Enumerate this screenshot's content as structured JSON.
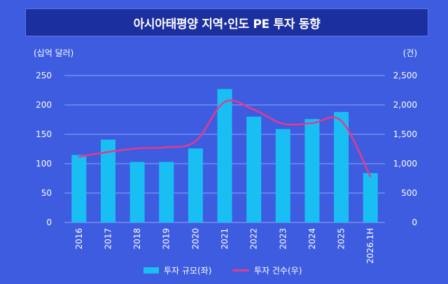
{
  "title": "아시아태평양 지역·인도 PE 투자 동향",
  "chart_data": {
    "type": "bar",
    "categories": [
      "2016",
      "2017",
      "2018",
      "2019",
      "2020",
      "2021",
      "2022",
      "2023",
      "2024",
      "2025",
      "2026.1H"
    ],
    "series": [
      {
        "name": "투자 규모(좌)",
        "type": "bar",
        "axis": "left",
        "values": [
          115,
          141,
          103,
          103,
          126,
          227,
          180,
          159,
          176,
          188,
          84
        ]
      },
      {
        "name": "투자 건수(우)",
        "type": "line",
        "axis": "right",
        "values": [
          1120,
          1200,
          1260,
          1280,
          1380,
          2050,
          1920,
          1680,
          1690,
          1730,
          780
        ]
      }
    ],
    "left_axis": {
      "unit_label": "(십억 달러)",
      "ylim": [
        0,
        250
      ],
      "ticks": [
        "0",
        "50",
        "100",
        "150",
        "200",
        "250"
      ]
    },
    "right_axis": {
      "unit_label": "(건)",
      "ylim": [
        0,
        2500
      ],
      "ticks": [
        "0",
        "500",
        "1,000",
        "1,500",
        "2,000",
        "2,500"
      ]
    },
    "grid": true,
    "legend_position": "bottom",
    "colors": {
      "bar": "#19bff2",
      "line": "#e43a8f",
      "background": "#3d5ce0",
      "title_bg": "#1c2f9e"
    }
  }
}
